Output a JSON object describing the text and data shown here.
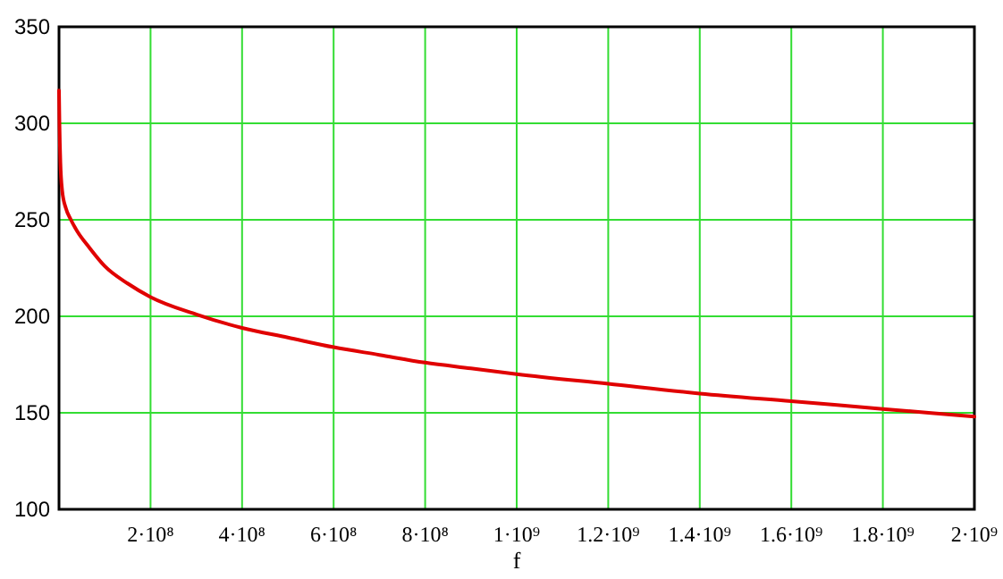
{
  "chart_data": {
    "type": "line",
    "xlabel": "f",
    "x": [
      0,
      1000000,
      3000000,
      7000000,
      15000000,
      26000000,
      40000000,
      65000000,
      100000000,
      150000000,
      200000000,
      300000000,
      400000000,
      500000000,
      600000000,
      700000000,
      800000000,
      900000000,
      1000000000,
      1200000000,
      1400000000,
      1600000000,
      1800000000,
      2000000000
    ],
    "series": [
      {
        "color": "#e00000",
        "values": [
          317,
          300,
          280,
          265,
          256,
          250,
          244,
          236,
          226,
          217,
          210,
          201,
          194,
          189,
          184,
          180,
          176,
          173,
          170,
          165,
          160,
          156,
          152,
          148
        ]
      }
    ],
    "xlim": [
      0,
      2000000000
    ],
    "xticks": [
      {
        "value": 200000000,
        "label": "2·10⁸"
      },
      {
        "value": 400000000,
        "label": "4·10⁸"
      },
      {
        "value": 600000000,
        "label": "6·10⁸"
      },
      {
        "value": 800000000,
        "label": "8·10⁸"
      },
      {
        "value": 1000000000,
        "label": "1·10⁹"
      },
      {
        "value": 1200000000,
        "label": "1.2·10⁹"
      },
      {
        "value": 1400000000,
        "label": "1.4·10⁹"
      },
      {
        "value": 1600000000,
        "label": "1.6·10⁹"
      },
      {
        "value": 1800000000,
        "label": "1.8·10⁹"
      },
      {
        "value": 2000000000,
        "label": "2·10⁹"
      }
    ],
    "ylim": [
      100,
      350
    ],
    "yticks": [
      100,
      150,
      200,
      250,
      300,
      350
    ],
    "grid": true,
    "line_style": "solid",
    "marker": "none"
  }
}
